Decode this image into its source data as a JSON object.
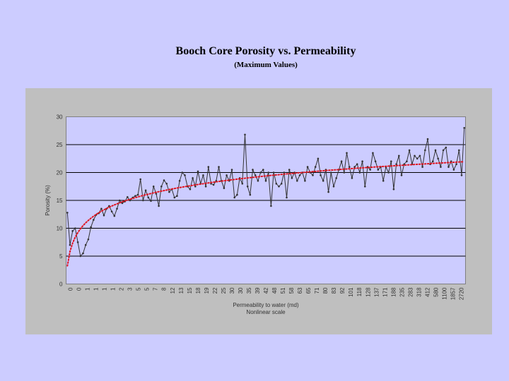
{
  "slide": {
    "title": "Booch Core Porosity vs. Permeability",
    "subtitle": "(Maximum Values)"
  },
  "colors": {
    "background": "#ccccff",
    "panel": "#bfbfbf",
    "series_line": "#333333",
    "trend_line": "#e0141e"
  },
  "chart_data": {
    "type": "line",
    "ylabel": "Porosity (%)",
    "xlabel": "Permeability to water (md)",
    "xlabel_note": "Nonlinear scale",
    "ylim": [
      0,
      30
    ],
    "yticks": [
      0,
      5,
      10,
      15,
      20,
      25,
      30
    ],
    "grid": "horizontal",
    "x_tick_labels": [
      "0",
      "0",
      "1",
      "1",
      "1",
      "1",
      "2",
      "3",
      "5",
      "5",
      "7",
      "8",
      "12",
      "13",
      "15",
      "18",
      "19",
      "22",
      "25",
      "30",
      "30",
      "35",
      "39",
      "42",
      "48",
      "51",
      "58",
      "63",
      "65",
      "71",
      "80",
      "83",
      "92",
      "101",
      "118",
      "128",
      "137",
      "171",
      "188",
      "235",
      "283",
      "318",
      "412",
      "580",
      "1100",
      "1857",
      "2720"
    ],
    "series": [
      {
        "name": "",
        "style": "line-markers",
        "values": [
          12.8,
          7.0,
          9.5,
          10.0,
          7.5,
          5.0,
          5.5,
          7.0,
          8.0,
          10.2,
          11.5,
          12.4,
          12.7,
          13.5,
          12.3,
          13.5,
          14.0,
          13.0,
          12.2,
          13.5,
          15.0,
          14.5,
          14.8,
          15.6,
          15.0,
          15.5,
          15.8,
          16.0,
          18.8,
          15.0,
          16.8,
          15.5,
          14.9,
          17.5,
          16.2,
          14.0,
          17.5,
          18.6,
          18.0,
          16.5,
          17.0,
          15.5,
          15.8,
          18.5,
          20.0,
          19.5,
          17.5,
          17.0,
          19.0,
          17.5,
          20.2,
          18.0,
          19.5,
          17.5,
          21.0,
          18.0,
          17.8,
          18.5,
          21.0,
          18.5,
          17.2,
          19.5,
          18.5,
          20.5,
          15.5,
          16.0,
          19.0,
          18.0,
          26.8,
          17.5,
          16.0,
          20.5,
          19.5,
          18.5,
          20.0,
          20.5,
          18.5,
          20.0,
          14.0,
          20.0,
          18.0,
          17.5,
          18.0,
          20.0,
          15.5,
          20.5,
          19.0,
          20.0,
          18.5,
          19.5,
          20.0,
          18.5,
          21.0,
          20.0,
          19.5,
          21.0,
          22.5,
          19.5,
          18.5,
          20.5,
          16.5,
          20.0,
          17.5,
          19.0,
          20.5,
          22.0,
          20.0,
          23.5,
          21.0,
          19.0,
          21.0,
          21.5,
          20.0,
          22.0,
          17.5,
          21.0,
          20.5,
          23.5,
          22.0,
          20.5,
          21.0,
          18.5,
          21.0,
          20.0,
          22.0,
          17.0,
          21.5,
          23.0,
          19.5,
          21.5,
          22.0,
          24.0,
          21.5,
          23.0,
          22.5,
          23.0,
          21.0,
          24.0,
          26.0,
          21.5,
          22.0,
          24.0,
          22.5,
          21.0,
          24.0,
          24.5,
          21.0,
          22.0,
          20.5,
          21.5,
          24.0,
          19.5,
          28.0
        ]
      },
      {
        "name": "",
        "style": "dotted-trend",
        "fit": "logarithmic"
      }
    ]
  }
}
